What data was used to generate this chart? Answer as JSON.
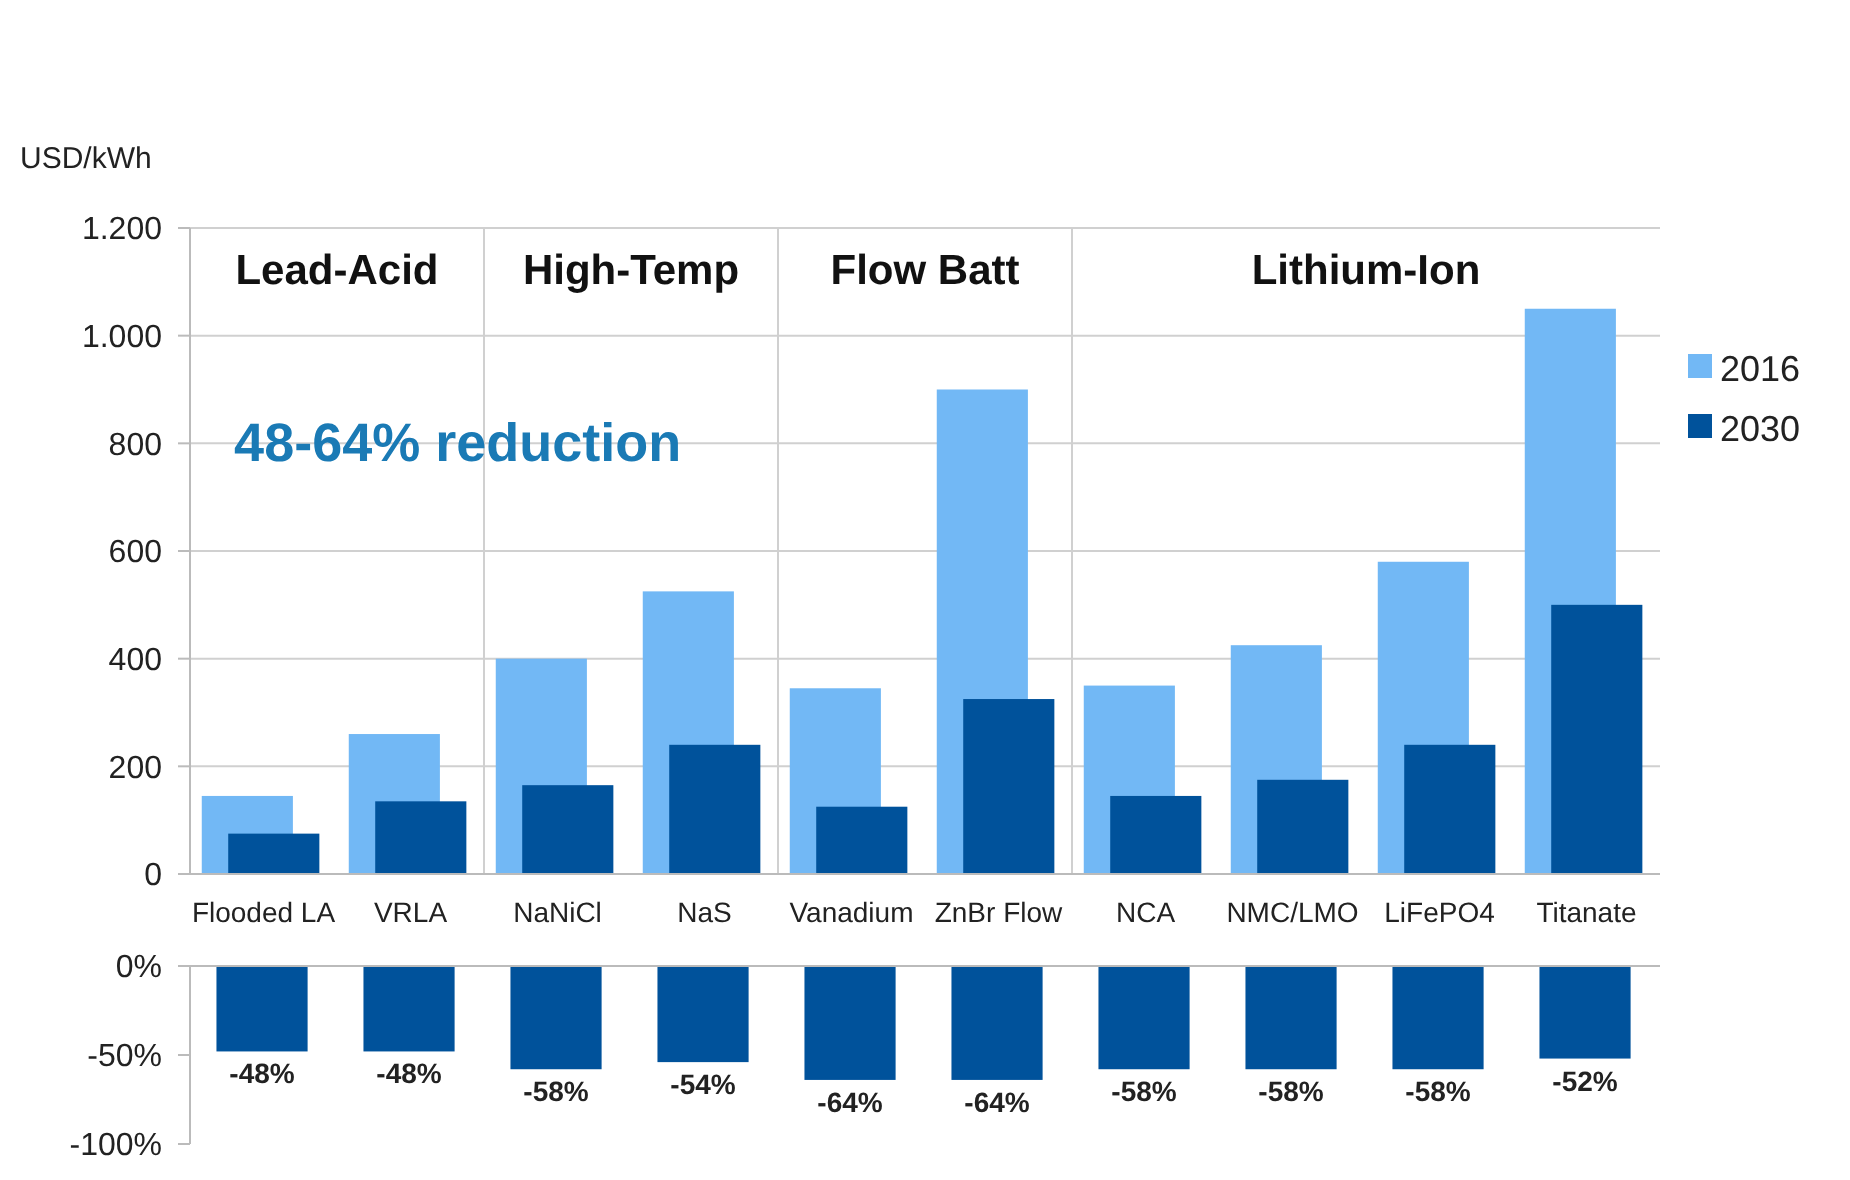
{
  "chart_data": [
    {
      "type": "bar",
      "ylabel": "USD/kWh",
      "categories": [
        "Flooded LA",
        "VRLA",
        "NaNiCl",
        "NaS",
        "Vanadium",
        "ZnBr Flow",
        "NCA",
        "NMC/LMO",
        "LiFePO4",
        "Titanate"
      ],
      "series": [
        {
          "name": "2016",
          "color": "#72b8f5",
          "values": [
            145,
            260,
            400,
            525,
            345,
            900,
            350,
            425,
            580,
            1050
          ]
        },
        {
          "name": "2030",
          "color": "#00529b",
          "values": [
            75,
            135,
            165,
            240,
            125,
            325,
            145,
            175,
            240,
            500
          ]
        }
      ],
      "ylim": [
        0,
        1200
      ],
      "yticks": [
        0,
        200,
        400,
        600,
        800,
        {
          "value": 1000,
          "label": "1.000"
        },
        {
          "value": 1200,
          "label": "1.200"
        }
      ],
      "grid": "y",
      "legend": "right",
      "annotations": [
        "Lead-Acid",
        "High-Temp",
        "Flow Batt",
        "Lithium-Ion",
        "48-64% reduction"
      ]
    },
    {
      "type": "bar",
      "categories": [
        null,
        null,
        null,
        null,
        null,
        null,
        null,
        null,
        null,
        null
      ],
      "values": [
        -48,
        -48,
        -58,
        -54,
        -64,
        -64,
        -58,
        -58,
        -58,
        -52
      ],
      "value_labels": [
        "-48%",
        "-48%",
        "-58%",
        "-54%",
        "-64%",
        "-64%",
        "-58%",
        "-58%",
        "-58%",
        "-52%"
      ],
      "color": "#00529b",
      "ylim": [
        -100,
        0
      ],
      "yticks": [
        {
          "value": 0,
          "label": "0%"
        },
        {
          "value": -50,
          "label": "-50%"
        },
        {
          "value": -100,
          "label": "-100%"
        }
      ],
      "tick_labels": "y"
    }
  ]
}
